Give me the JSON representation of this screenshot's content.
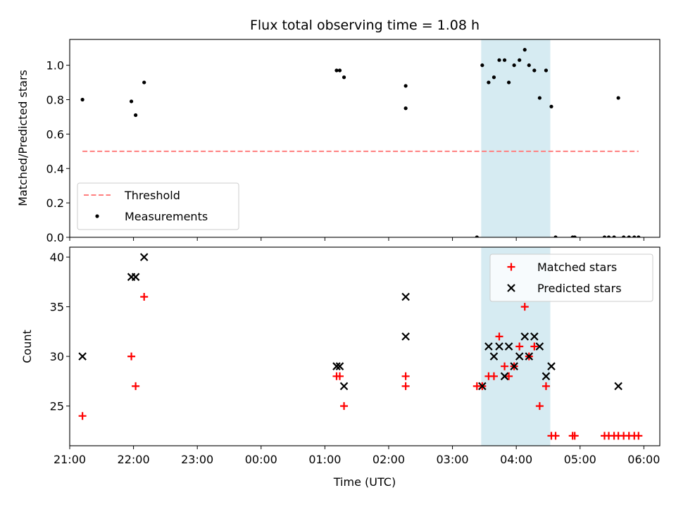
{
  "chart_data": [
    {
      "type": "scatter",
      "title": "Flux total observing time = 1.08 h",
      "xlabel": "",
      "ylabel": "Matched/Predicted stars",
      "xlim": [
        "21:00",
        "06:15"
      ],
      "ylim": [
        0,
        1.15
      ],
      "yticks": [
        0.0,
        0.2,
        0.4,
        0.6,
        0.8,
        1.0
      ],
      "ytick_labels": [
        "0.0",
        "0.2",
        "0.4",
        "0.6",
        "0.8",
        "1.0"
      ],
      "highlight_span": {
        "x": [
          "03:27",
          "04:32"
        ],
        "color": "#add8e6"
      },
      "series": [
        {
          "name": "Threshold",
          "style": "dashed-line",
          "color": "#ff7f7f",
          "x": [
            "21:12",
            "05:55"
          ],
          "y": [
            0.5,
            0.5
          ]
        },
        {
          "name": "Measurements",
          "style": "dot",
          "color": "#000000",
          "x": [
            "21:12",
            "21:58",
            "22:02",
            "22:10",
            "01:11",
            "01:14",
            "01:18",
            "02:16",
            "02:16",
            "03:23",
            "03:28",
            "03:34",
            "03:39",
            "03:44",
            "03:49",
            "03:53",
            "03:58",
            "04:03",
            "04:08",
            "04:12",
            "04:17",
            "04:22",
            "04:28",
            "04:33",
            "04:37",
            "04:53",
            "04:55",
            "05:23",
            "05:27",
            "05:32",
            "05:36",
            "05:41",
            "05:46",
            "05:51",
            "05:55"
          ],
          "y": [
            0.8,
            0.79,
            0.71,
            0.9,
            0.97,
            0.97,
            0.93,
            0.88,
            0.75,
            0.0,
            1.0,
            0.9,
            0.93,
            1.03,
            1.03,
            0.9,
            1.0,
            1.03,
            1.09,
            1.0,
            0.97,
            0.81,
            0.97,
            0.76,
            0.0,
            0.0,
            0.0,
            0.0,
            0.0,
            0.0,
            0.81,
            0.0,
            0.0,
            0.0,
            0.0
          ]
        }
      ],
      "legend": {
        "position": "lower left",
        "entries": [
          "Threshold",
          "Measurements"
        ]
      }
    },
    {
      "type": "scatter",
      "title": "",
      "xlabel": "Time (UTC)",
      "ylabel": "Count",
      "xlim": [
        "21:00",
        "06:15"
      ],
      "xticks": [
        "21:00",
        "22:00",
        "23:00",
        "00:00",
        "01:00",
        "02:00",
        "03:00",
        "04:00",
        "05:00",
        "06:00"
      ],
      "ylim": [
        21,
        41
      ],
      "yticks": [
        25,
        30,
        35,
        40
      ],
      "ytick_labels": [
        "25",
        "30",
        "35",
        "40"
      ],
      "highlight_span": {
        "x": [
          "03:27",
          "04:32"
        ],
        "color": "#add8e6"
      },
      "series": [
        {
          "name": "Matched stars",
          "marker": "+",
          "color": "#ff0000",
          "x": [
            "21:12",
            "21:58",
            "22:02",
            "22:10",
            "01:11",
            "01:14",
            "01:18",
            "02:16",
            "02:16",
            "03:23",
            "03:28",
            "03:34",
            "03:39",
            "03:44",
            "03:49",
            "03:53",
            "03:58",
            "04:03",
            "04:08",
            "04:12",
            "04:17",
            "04:22",
            "04:28",
            "04:33",
            "04:37",
            "04:53",
            "04:55",
            "05:23",
            "05:27",
            "05:32",
            "05:36",
            "05:41",
            "05:46",
            "05:51",
            "05:55"
          ],
          "y": [
            24,
            30,
            27,
            36,
            28,
            28,
            25,
            28,
            27,
            27,
            27,
            28,
            28,
            32,
            29,
            28,
            29,
            31,
            35,
            30,
            31,
            25,
            27,
            22,
            22,
            22,
            22,
            22,
            22,
            22,
            22,
            22,
            22,
            22,
            22
          ]
        },
        {
          "name": "Predicted stars",
          "marker": "x",
          "color": "#000000",
          "x": [
            "21:12",
            "21:58",
            "22:02",
            "22:10",
            "01:11",
            "01:14",
            "01:18",
            "02:16",
            "02:16",
            "03:28",
            "03:34",
            "03:39",
            "03:44",
            "03:49",
            "03:53",
            "03:58",
            "04:03",
            "04:08",
            "04:12",
            "04:17",
            "04:22",
            "04:28",
            "04:33",
            "05:36"
          ],
          "y": [
            30,
            38,
            38,
            40,
            29,
            29,
            27,
            36,
            32,
            27,
            31,
            30,
            31,
            28,
            31,
            29,
            30,
            32,
            30,
            32,
            31,
            28,
            29,
            27
          ]
        }
      ],
      "legend": {
        "position": "upper right",
        "entries": [
          "Matched stars",
          "Predicted stars"
        ]
      }
    }
  ]
}
